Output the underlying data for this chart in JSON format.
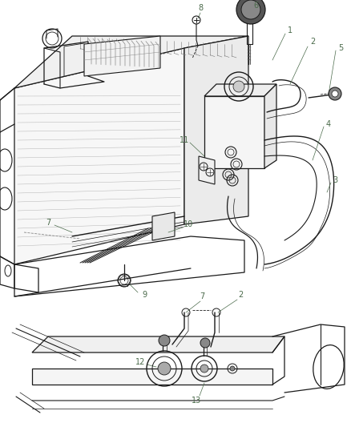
{
  "bg_color": "#ffffff",
  "line_color": "#1a1a1a",
  "label_color": "#4a6a4a",
  "fig_width": 4.38,
  "fig_height": 5.33,
  "dpi": 100
}
